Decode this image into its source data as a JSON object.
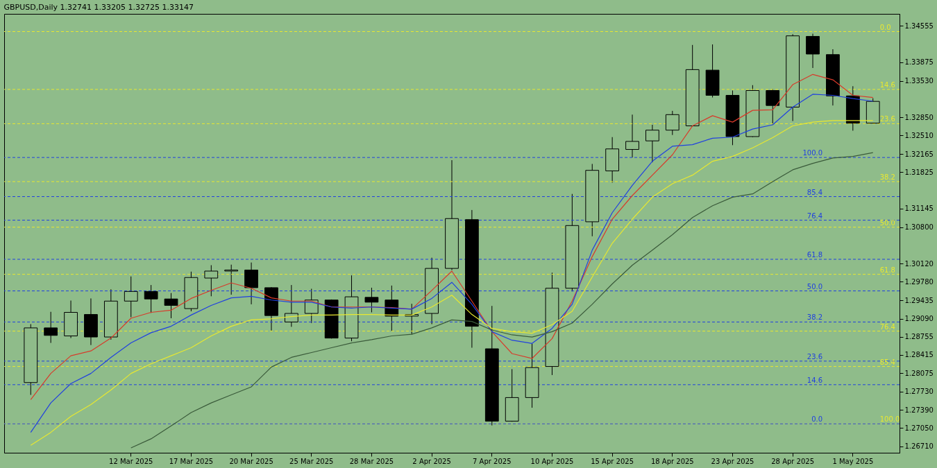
{
  "chart_data": {
    "type": "candlestick",
    "title": "GBPUSD,Daily  1.32741 1.33205 1.32725 1.33147",
    "categories": [
      null,
      null,
      null,
      null,
      null,
      "12 Mar 2025",
      null,
      null,
      "17 Mar 2025",
      null,
      null,
      "20 Mar 2025",
      null,
      null,
      "25 Mar 2025",
      null,
      null,
      "28 Mar 2025",
      null,
      null,
      "2 Apr 2025",
      null,
      null,
      "7 Apr 2025",
      null,
      null,
      "10 Apr 2025",
      null,
      null,
      "15 Apr 2025",
      null,
      null,
      "18 Apr 2025",
      null,
      null,
      "23 Apr 2025",
      null,
      null,
      "28 Apr 2025",
      null,
      null,
      "1 May 2025",
      null
    ],
    "ohlc": [
      [
        1.279,
        1.2899,
        1.2767,
        1.2892
      ],
      [
        1.2892,
        1.2922,
        1.2864,
        1.2878
      ],
      [
        1.2877,
        1.2943,
        1.2873,
        1.2921
      ],
      [
        1.2917,
        1.2947,
        1.286,
        1.2875
      ],
      [
        1.2875,
        1.2964,
        1.287,
        1.2942
      ],
      [
        1.2942,
        1.2988,
        1.2912,
        1.296
      ],
      [
        1.296,
        1.2972,
        1.292,
        1.2946
      ],
      [
        1.2946,
        1.2957,
        1.291,
        1.2934
      ],
      [
        1.2928,
        1.2997,
        1.2923,
        1.2986
      ],
      [
        1.2985,
        1.3009,
        1.2951,
        1.2998
      ],
      [
        1.2998,
        1.301,
        1.2954,
        1.3
      ],
      [
        1.3,
        1.3014,
        1.2936,
        1.2967
      ],
      [
        1.2967,
        1.2968,
        1.2887,
        1.2915
      ],
      [
        1.2903,
        1.2972,
        1.2894,
        1.2919
      ],
      [
        1.2919,
        1.2965,
        1.2901,
        1.2944
      ],
      [
        1.2944,
        1.2945,
        1.2872,
        1.2873
      ],
      [
        1.2873,
        1.299,
        1.2867,
        1.295
      ],
      [
        1.2949,
        1.2967,
        1.2921,
        1.294
      ],
      [
        1.2944,
        1.2971,
        1.2886,
        1.2914
      ],
      [
        1.2914,
        1.2937,
        1.288,
        1.2917
      ],
      [
        1.2919,
        1.3023,
        1.2899,
        1.3003
      ],
      [
        1.3003,
        1.3205,
        1.3,
        1.3096
      ],
      [
        1.3094,
        1.3112,
        1.2855,
        1.2895
      ],
      [
        1.2853,
        1.2933,
        1.271,
        1.2718
      ],
      [
        1.2718,
        1.2815,
        1.2717,
        1.2762
      ],
      [
        1.2762,
        1.2863,
        1.2743,
        1.2818
      ],
      [
        1.282,
        1.2995,
        1.2804,
        1.2966
      ],
      [
        1.2966,
        1.3142,
        1.296,
        1.3083
      ],
      [
        1.309,
        1.3198,
        1.3063,
        1.3186
      ],
      [
        1.3185,
        1.3248,
        1.3163,
        1.3226
      ],
      [
        1.3225,
        1.329,
        1.321,
        1.324
      ],
      [
        1.3241,
        1.3271,
        1.3201,
        1.3261
      ],
      [
        1.3261,
        1.3297,
        1.3252,
        1.329
      ],
      [
        1.3269,
        1.342,
        1.3268,
        1.3374
      ],
      [
        1.3373,
        1.3421,
        1.3322,
        1.3326
      ],
      [
        1.3326,
        1.3335,
        1.3233,
        1.3249
      ],
      [
        1.3249,
        1.3345,
        1.3248,
        1.3335
      ],
      [
        1.3335,
        1.3338,
        1.3271,
        1.3307
      ],
      [
        1.3304,
        1.344,
        1.3278,
        1.3437
      ],
      [
        1.3436,
        1.3441,
        1.3377,
        1.3403
      ],
      [
        1.3402,
        1.3412,
        1.3307,
        1.3325
      ],
      [
        1.3325,
        1.3343,
        1.326,
        1.3274
      ],
      [
        1.32741,
        1.33205,
        1.32725,
        1.33147
      ]
    ],
    "series": [
      {
        "type": "line",
        "color": "#d83a2a",
        "values": [
          1.2758,
          1.2807,
          1.284,
          1.2849,
          1.2873,
          1.291,
          1.2921,
          1.2925,
          1.2947,
          1.2962,
          1.2976,
          1.2966,
          1.2948,
          1.2942,
          1.2942,
          1.2931,
          1.2931,
          1.2931,
          1.293,
          1.2927,
          1.2962,
          1.2998,
          1.2942,
          1.2885,
          1.2844,
          1.2835,
          1.2872,
          1.2942,
          1.3025,
          1.3095,
          1.3139,
          1.3177,
          1.3215,
          1.3269,
          1.3288,
          1.3276,
          1.3298,
          1.3299,
          1.3346,
          1.3365,
          1.3355,
          1.3326,
          1.3322
        ]
      },
      {
        "type": "line",
        "color": "#2040e0",
        "values": [
          1.2697,
          1.2752,
          1.2788,
          1.2807,
          1.2837,
          1.2864,
          1.2883,
          1.2895,
          1.2916,
          1.2934,
          1.2948,
          1.2951,
          1.2944,
          1.294,
          1.294,
          1.2931,
          1.2929,
          1.2931,
          1.2929,
          1.2927,
          1.2947,
          1.2977,
          1.2936,
          1.2885,
          1.2869,
          1.2863,
          1.2891,
          1.2936,
          1.3037,
          1.3107,
          1.3158,
          1.3203,
          1.3231,
          1.3234,
          1.3246,
          1.3248,
          1.3263,
          1.3271,
          1.3304,
          1.3328,
          1.3326,
          1.332,
          1.3315
        ]
      },
      {
        "type": "line",
        "color": "#e8e830",
        "values": [
          1.2673,
          1.2697,
          1.2727,
          1.2749,
          1.2776,
          1.2807,
          1.2825,
          1.284,
          1.2855,
          1.2877,
          1.2895,
          1.2907,
          1.2909,
          1.2913,
          1.2916,
          1.2916,
          1.2917,
          1.2917,
          1.2916,
          1.2916,
          1.2931,
          1.2953,
          1.2917,
          1.2891,
          1.2885,
          1.2882,
          1.2898,
          1.2923,
          1.2987,
          1.305,
          1.3095,
          1.3136,
          1.3161,
          1.3177,
          1.3203,
          1.3212,
          1.3228,
          1.3247,
          1.3269,
          1.3276,
          1.3279,
          1.3279,
          1.3279
        ]
      },
      {
        "type": "line",
        "color": "#3a5a3a",
        "values": [
          null,
          null,
          null,
          null,
          null,
          1.2668,
          1.2685,
          1.2709,
          1.2734,
          1.2752,
          1.2767,
          1.2782,
          1.2819,
          1.2837,
          1.2846,
          1.2855,
          1.2864,
          1.287,
          1.2877,
          1.288,
          1.2892,
          1.2907,
          1.2904,
          1.2888,
          1.2879,
          1.2875,
          1.2885,
          1.2901,
          1.2936,
          1.2974,
          1.3009,
          1.3037,
          1.3066,
          1.3098,
          1.312,
          1.3136,
          1.3142,
          1.3165,
          1.3187,
          1.3199,
          1.3209,
          1.3212,
          1.3219
        ]
      }
    ],
    "ref_lines": [
      {
        "axis": "y",
        "value": 1.3445,
        "color": "#e8e830",
        "line_style": "dashed"
      },
      {
        "axis": "y",
        "value": 1.3337,
        "color": "#e8e830",
        "line_style": "dashed"
      },
      {
        "axis": "y",
        "value": 1.3273,
        "color": "#e8e830",
        "line_style": "dashed"
      },
      {
        "axis": "y",
        "value": 1.3165,
        "color": "#e8e830",
        "line_style": "dashed"
      },
      {
        "axis": "y",
        "value": 1.308,
        "color": "#e8e830",
        "line_style": "dashed"
      },
      {
        "axis": "y",
        "value": 1.2992,
        "color": "#e8e830",
        "line_style": "dashed"
      },
      {
        "axis": "y",
        "value": 1.2886,
        "color": "#e8e830",
        "line_style": "dashed"
      },
      {
        "axis": "y",
        "value": 1.282,
        "color": "#e8e830",
        "line_style": "dashed"
      },
      {
        "axis": "y",
        "value": 1.2713,
        "color": "#e8e830",
        "line_style": "dashed"
      },
      {
        "axis": "y",
        "value": 1.321,
        "color": "#2040e0",
        "line_style": "dashed"
      },
      {
        "axis": "y",
        "value": 1.3137,
        "color": "#2040e0",
        "line_style": "dashed"
      },
      {
        "axis": "y",
        "value": 1.3093,
        "color": "#2040e0",
        "line_style": "dashed"
      },
      {
        "axis": "y",
        "value": 1.302,
        "color": "#2040e0",
        "line_style": "dashed"
      },
      {
        "axis": "y",
        "value": 1.2961,
        "color": "#2040e0",
        "line_style": "dashed"
      },
      {
        "axis": "y",
        "value": 1.2903,
        "color": "#2040e0",
        "line_style": "dashed"
      },
      {
        "axis": "y",
        "value": 1.283,
        "color": "#2040e0",
        "line_style": "dashed"
      },
      {
        "axis": "y",
        "value": 1.2786,
        "color": "#2040e0",
        "line_style": "dashed"
      },
      {
        "axis": "y",
        "value": 1.2713,
        "color": "#2040e0",
        "line_style": "dashed"
      }
    ],
    "annotations": [
      {
        "text": "0.0",
        "y": 1.3445
      },
      {
        "text": "14.6",
        "y": 1.3337
      },
      {
        "text": "23.6",
        "y": 1.3273
      },
      {
        "text": "38.2",
        "y": 1.3165
      },
      {
        "text": "50.0",
        "y": 1.308
      },
      {
        "text": "61.8",
        "y": 1.2992
      },
      {
        "text": "76.4",
        "y": 1.2886
      },
      {
        "text": "85.4",
        "y": 1.282
      },
      {
        "text": "100.0",
        "y": 1.2713
      },
      {
        "text": "100.0",
        "y": 1.321
      },
      {
        "text": "85.4",
        "y": 1.3137
      },
      {
        "text": "76.4",
        "y": 1.3093
      },
      {
        "text": "61.8",
        "y": 1.302
      },
      {
        "text": "50.0",
        "y": 1.2961
      },
      {
        "text": "38.2",
        "y": 1.2903
      },
      {
        "text": "23.6",
        "y": 1.283
      },
      {
        "text": "14.6",
        "y": 1.2786
      },
      {
        "text": "0.0",
        "y": 1.2713
      }
    ],
    "ylim": [
      1.2659,
      1.3478
    ],
    "yticks": [
      {
        "value": 1.34555,
        "label": "1.34555"
      },
      {
        "value": 1.33875,
        "label": "1.33875"
      },
      {
        "value": 1.3353,
        "label": "1.33530"
      },
      {
        "value": 1.3285,
        "label": "1.32850"
      },
      {
        "value": 1.3251,
        "label": "1.32510"
      },
      {
        "value": 1.32165,
        "label": "1.32165"
      },
      {
        "value": 1.31825,
        "label": "1.31825"
      },
      {
        "value": 1.31145,
        "label": "1.31145"
      },
      {
        "value": 1.308,
        "label": "1.30800"
      },
      {
        "value": 1.3012,
        "label": "1.30120"
      },
      {
        "value": 1.2978,
        "label": "1.29780"
      },
      {
        "value": 1.29435,
        "label": "1.29435"
      },
      {
        "value": 1.2909,
        "label": "1.29090"
      },
      {
        "value": 1.28755,
        "label": "1.28755"
      },
      {
        "value": 1.28415,
        "label": "1.28415"
      },
      {
        "value": 1.28075,
        "label": "1.28075"
      },
      {
        "value": 1.2773,
        "label": "1.27730"
      },
      {
        "value": 1.2739,
        "label": "1.27390"
      },
      {
        "value": 1.2705,
        "label": "1.27050"
      },
      {
        "value": 1.2671,
        "label": "1.26710"
      }
    ],
    "grid": false
  }
}
